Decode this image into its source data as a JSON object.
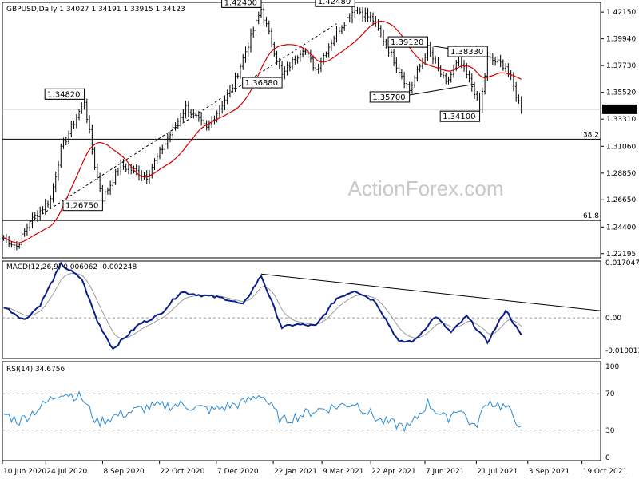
{
  "chart_data": [
    {
      "type": "candlestick",
      "panel": "price",
      "header": "GBPUSD,Daily  1.34027 1.34191 1.33915 1.34123",
      "watermark": "ActionForex.com",
      "ylim": [
        1.2185,
        1.4295
      ],
      "y_ticks": [
        1.4215,
        1.3994,
        1.3773,
        1.3552,
        1.3331,
        1.3106,
        1.2885,
        1.2665,
        1.244,
        1.22195
      ],
      "y_tick_labels": [
        "1.42150",
        "1.39940",
        "1.37730",
        "1.35520",
        "1.33310",
        "1.31060",
        "1.28850",
        "1.26650",
        "1.24400",
        "1.22195"
      ],
      "last_price": 1.34123,
      "last_price_label": "1.34123",
      "fib_levels": [
        {
          "label": "38.2",
          "value": 1.3165
        },
        {
          "label": "61.8",
          "value": 1.2494
        }
      ],
      "annotations": [
        {
          "text": "1.34820",
          "bar": 31,
          "price": 1.3482
        },
        {
          "text": "1.26750",
          "bar": 38,
          "price": 1.2675
        },
        {
          "text": "1.42400",
          "bar": 99,
          "price": 1.424
        },
        {
          "text": "1.36880",
          "bar": 107,
          "price": 1.3688
        },
        {
          "text": "1.42480",
          "bar": 135,
          "price": 1.4248
        },
        {
          "text": "1.35700",
          "bar": 156,
          "price": 1.357
        },
        {
          "text": "1.39120",
          "bar": 163,
          "price": 1.3912
        },
        {
          "text": "1.38330",
          "bar": 186,
          "price": 1.3833
        },
        {
          "text": "1.34100",
          "bar": 183,
          "price": 1.341
        }
      ],
      "key_points": [
        {
          "bar": 0,
          "price": 1.235
        },
        {
          "bar": 5,
          "price": 1.228
        },
        {
          "bar": 10,
          "price": 1.248
        },
        {
          "bar": 18,
          "price": 1.267
        },
        {
          "bar": 22,
          "price": 1.308
        },
        {
          "bar": 31,
          "price": 1.3482
        },
        {
          "bar": 35,
          "price": 1.295
        },
        {
          "bar": 38,
          "price": 1.2675
        },
        {
          "bar": 45,
          "price": 1.295
        },
        {
          "bar": 55,
          "price": 1.286
        },
        {
          "bar": 62,
          "price": 1.313
        },
        {
          "bar": 70,
          "price": 1.343
        },
        {
          "bar": 78,
          "price": 1.325
        },
        {
          "bar": 88,
          "price": 1.36
        },
        {
          "bar": 99,
          "price": 1.424
        },
        {
          "bar": 107,
          "price": 1.3688
        },
        {
          "bar": 115,
          "price": 1.392
        },
        {
          "bar": 120,
          "price": 1.374
        },
        {
          "bar": 128,
          "price": 1.405
        },
        {
          "bar": 135,
          "price": 1.4248
        },
        {
          "bar": 142,
          "price": 1.415
        },
        {
          "bar": 150,
          "price": 1.382
        },
        {
          "bar": 156,
          "price": 1.357
        },
        {
          "bar": 163,
          "price": 1.3912
        },
        {
          "bar": 170,
          "price": 1.362
        },
        {
          "bar": 175,
          "price": 1.382
        },
        {
          "bar": 181,
          "price": 1.356
        },
        {
          "bar": 183,
          "price": 1.341
        },
        {
          "bar": 186,
          "price": 1.3833
        },
        {
          "bar": 193,
          "price": 1.377
        },
        {
          "bar": 199,
          "price": 1.3412
        }
      ],
      "bar_count": 200
    },
    {
      "type": "line",
      "panel": "macd",
      "header": "MACD(12,26,9) 0.006062 -0.002248",
      "ylim": [
        -0.0125,
        0.0175
      ],
      "y_tick_labels": [
        "0.017047",
        "0.00",
        "-0.010013"
      ],
      "y_tick_values": [
        0.017047,
        0.0,
        -0.010013
      ],
      "macd_key_points": [
        {
          "bar": 0,
          "value": 0.0035
        },
        {
          "bar": 8,
          "value": -0.0006
        },
        {
          "bar": 14,
          "value": 0.004
        },
        {
          "bar": 22,
          "value": 0.0165
        },
        {
          "bar": 30,
          "value": 0.012
        },
        {
          "bar": 36,
          "value": -0.001
        },
        {
          "bar": 42,
          "value": -0.0095
        },
        {
          "bar": 52,
          "value": -0.002
        },
        {
          "bar": 60,
          "value": 0.001
        },
        {
          "bar": 68,
          "value": 0.008
        },
        {
          "bar": 76,
          "value": 0.007
        },
        {
          "bar": 85,
          "value": 0.006
        },
        {
          "bar": 92,
          "value": 0.004
        },
        {
          "bar": 99,
          "value": 0.013
        },
        {
          "bar": 107,
          "value": -0.003
        },
        {
          "bar": 112,
          "value": -0.002
        },
        {
          "bar": 120,
          "value": -0.0025
        },
        {
          "bar": 128,
          "value": 0.006
        },
        {
          "bar": 135,
          "value": 0.0085
        },
        {
          "bar": 143,
          "value": 0.005
        },
        {
          "bar": 152,
          "value": -0.0075
        },
        {
          "bar": 158,
          "value": -0.007
        },
        {
          "bar": 166,
          "value": 0.0005
        },
        {
          "bar": 172,
          "value": -0.0045
        },
        {
          "bar": 178,
          "value": 0.0005
        },
        {
          "bar": 186,
          "value": -0.0075
        },
        {
          "bar": 193,
          "value": 0.0025
        },
        {
          "bar": 199,
          "value": -0.0055
        }
      ],
      "trendline": [
        {
          "bar": 99,
          "value": 0.0135
        },
        {
          "bar": 199,
          "value": 0.0022
        }
      ]
    },
    {
      "type": "line",
      "panel": "rsi",
      "header": "RSI(14) 34.6756",
      "ylim": [
        0,
        100
      ],
      "y_tick_labels": [
        "100",
        "70",
        "30",
        "0"
      ],
      "y_tick_values": [
        100,
        70,
        30,
        0
      ],
      "levels": [
        70,
        30
      ],
      "rsi_key_points": [
        {
          "bar": 0,
          "value": 48
        },
        {
          "bar": 6,
          "value": 40
        },
        {
          "bar": 14,
          "value": 55
        },
        {
          "bar": 22,
          "value": 72
        },
        {
          "bar": 30,
          "value": 66
        },
        {
          "bar": 36,
          "value": 38
        },
        {
          "bar": 42,
          "value": 45
        },
        {
          "bar": 55,
          "value": 55
        },
        {
          "bar": 68,
          "value": 58
        },
        {
          "bar": 80,
          "value": 52
        },
        {
          "bar": 92,
          "value": 60
        },
        {
          "bar": 99,
          "value": 70
        },
        {
          "bar": 107,
          "value": 40
        },
        {
          "bar": 120,
          "value": 52
        },
        {
          "bar": 135,
          "value": 60
        },
        {
          "bar": 145,
          "value": 40
        },
        {
          "bar": 156,
          "value": 33
        },
        {
          "bar": 163,
          "value": 60
        },
        {
          "bar": 170,
          "value": 42
        },
        {
          "bar": 175,
          "value": 55
        },
        {
          "bar": 181,
          "value": 32
        },
        {
          "bar": 186,
          "value": 62
        },
        {
          "bar": 193,
          "value": 55
        },
        {
          "bar": 199,
          "value": 34.7
        }
      ]
    }
  ],
  "x_axis": {
    "labels": [
      {
        "text": "10 Jun 2020",
        "bar": 0
      },
      {
        "text": "24 Jul 2020",
        "bar": 16
      },
      {
        "text": "8 Sep 2020",
        "bar": 37
      },
      {
        "text": "22 Oct 2020",
        "bar": 58
      },
      {
        "text": "7 Dec 2020",
        "bar": 79
      },
      {
        "text": "22 Jan 2021",
        "bar": 100
      },
      {
        "text": "9 Mar 2021",
        "bar": 118
      },
      {
        "text": "22 Apr 2021",
        "bar": 136
      },
      {
        "text": "7 Jun 2021",
        "bar": 156
      },
      {
        "text": "21 Jul 2021",
        "bar": 175
      },
      {
        "text": "3 Sep 2021",
        "bar": 194
      },
      {
        "text": "19 Oct 2021",
        "bar": 214
      }
    ]
  },
  "colors": {
    "up": "#000000",
    "down": "#000000",
    "ma": "#d40000",
    "macd": "#0a1e8c",
    "signal": "#9a9a9a",
    "rsi": "#2b8bd6",
    "grid_level": "#9a9a9a"
  }
}
